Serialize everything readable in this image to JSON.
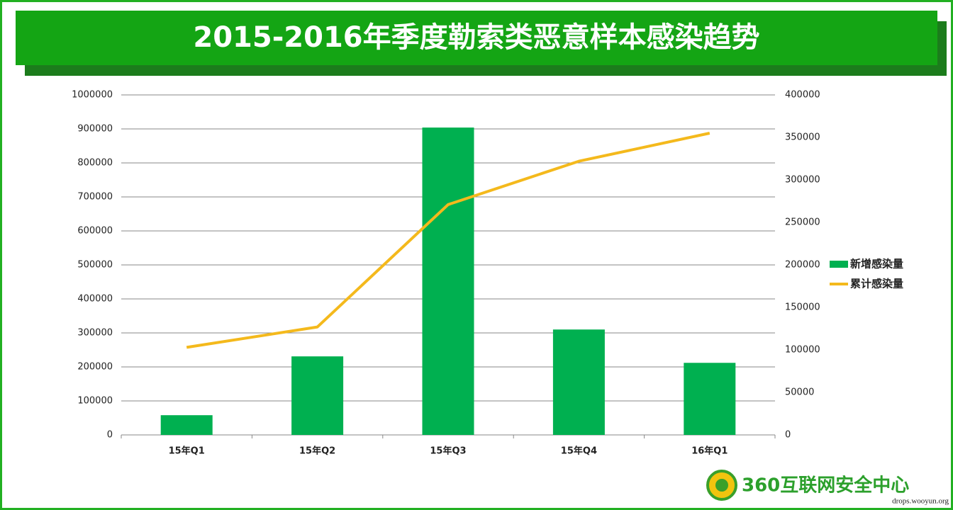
{
  "chart_data": {
    "type": "bar-line",
    "title": "2015-2016年季度勒索类恶意样本感染趋势",
    "categories": [
      "15年Q1",
      "15年Q2",
      "15年Q3",
      "15年Q4",
      "16年Q1"
    ],
    "series": [
      {
        "name": "新增感染量",
        "type": "bar",
        "color": "#00b050",
        "values": [
          58000,
          231000,
          904000,
          310000,
          212000
        ]
      },
      {
        "name": "累计感染量",
        "type": "line",
        "axis": "y2",
        "color": "#f4b91c",
        "values": [
          103000,
          127000,
          271000,
          322000,
          355000
        ]
      }
    ],
    "ylim": [
      0,
      1000000
    ],
    "yticks": [
      0,
      100000,
      200000,
      300000,
      400000,
      500000,
      600000,
      700000,
      800000,
      900000,
      1000000
    ],
    "y2lim": [
      0,
      400000
    ],
    "y2ticks": [
      0,
      50000,
      100000,
      150000,
      200000,
      250000,
      300000,
      350000,
      400000
    ],
    "grid": true,
    "legend": "right"
  },
  "footer": {
    "brand": "360互联网安全中心",
    "watermark": "drops.wooyun.org"
  }
}
